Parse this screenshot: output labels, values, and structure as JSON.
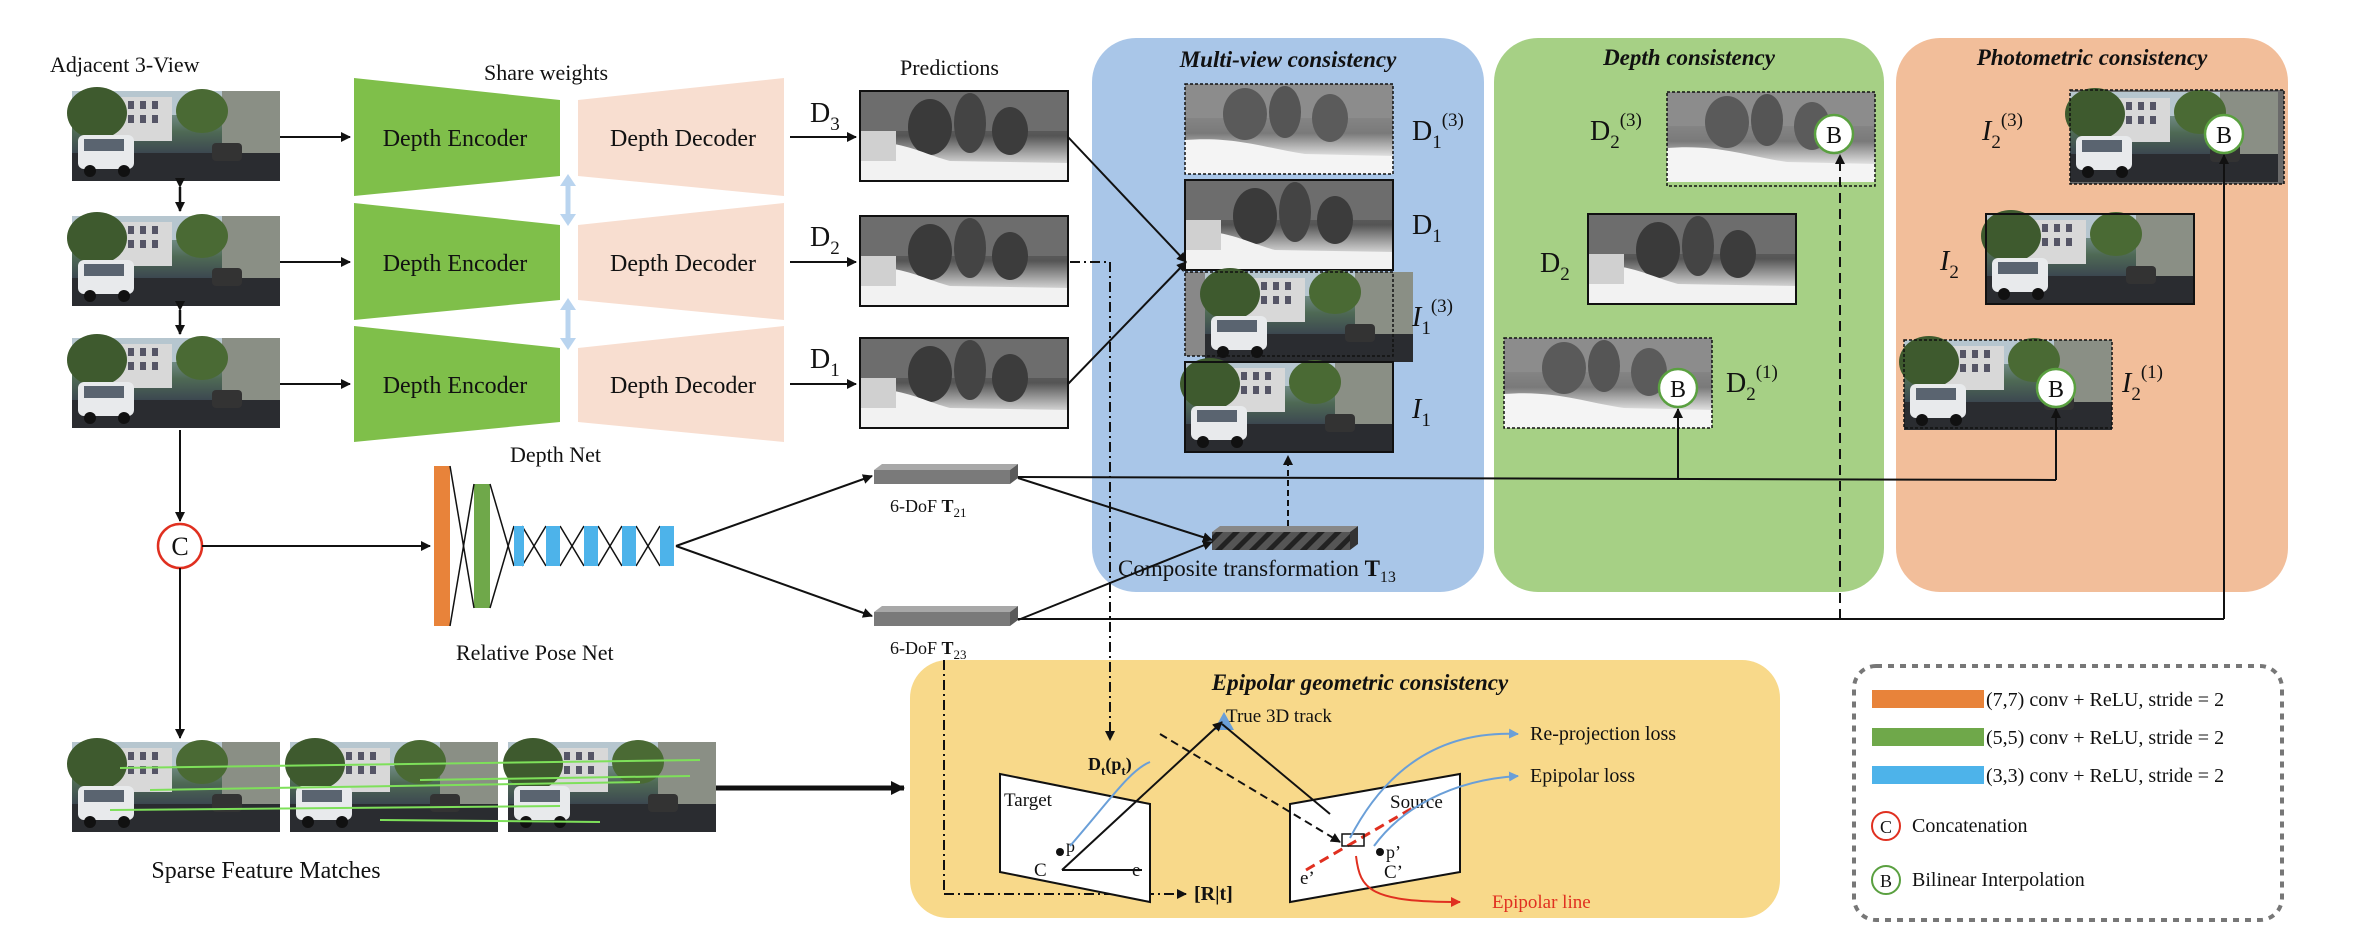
{
  "labels": {
    "adjacent": "Adjacent 3-View",
    "share_weights": "Share weights",
    "predictions": "Predictions",
    "depth_net": "Depth Net",
    "relative_pose_net": "Relative Pose Net",
    "sparse_matches": "Sparse Feature Matches",
    "composite_text": "Composite transformation ",
    "composite_sym": "T",
    "composite_sub": "13",
    "dof_prefix": "6-DoF ",
    "dof_sym": "T",
    "dof_21_sub": "21",
    "dof_23_sub": "23",
    "concat_symbol": "C",
    "bilinear_symbol": "B"
  },
  "encoder_label": "Depth Encoder",
  "decoder_label": "Depth Decoder",
  "predictions": {
    "d3": {
      "base": "D",
      "sub": "3"
    },
    "d2": {
      "base": "D",
      "sub": "2"
    },
    "d1": {
      "base": "D",
      "sub": "1"
    }
  },
  "panels": {
    "multiview": {
      "title": "Multi-view consistency",
      "color": "#a9c6e8",
      "d13": {
        "base": "D",
        "sub": "1",
        "sup": "(3)"
      },
      "d1": {
        "base": "D",
        "sub": "1"
      },
      "i13": {
        "base": "I",
        "sub": "1",
        "sup": "(3)"
      },
      "i1": {
        "base": "I",
        "sub": "1"
      }
    },
    "depth": {
      "title": "Depth consistency",
      "color": "#a6d085",
      "d23": {
        "base": "D",
        "sub": "2",
        "sup": "(3)"
      },
      "d2": {
        "base": "D",
        "sub": "2"
      },
      "d21": {
        "base": "D",
        "sub": "2",
        "sup": "(1)"
      }
    },
    "photo": {
      "title": "Photometric consistency",
      "color": "#f2be9a",
      "i23": {
        "base": "I",
        "sub": "2",
        "sup": "(3)"
      },
      "i2": {
        "base": "I",
        "sub": "2"
      },
      "i21": {
        "base": "I",
        "sub": "2",
        "sup": "(1)"
      }
    },
    "epipolar": {
      "title": "Epipolar geometric consistency",
      "color": "#f8d98a",
      "true_track": "True 3D track",
      "reprojection_loss": "Re-projection  loss",
      "epipolar_loss": "Epipolar loss",
      "target": "Target",
      "source": "Source",
      "depth_label": "D",
      "depth_sub": "t",
      "depth_arg": "(p",
      "depth_arg_sub": "t",
      "depth_arg_close": ")",
      "rt": "[R|t]",
      "c": "C",
      "c_prime": "C’",
      "e": "e",
      "e_prime": "e’",
      "p": "p",
      "p_prime": "p’",
      "epipolar_line": "Epipolar line"
    }
  },
  "legend": {
    "items": [
      {
        "color": "#e8833a",
        "label": "(7,7) conv + ReLU,  stride = 2"
      },
      {
        "color": "#6fa84a",
        "label": "(5,5) conv + ReLU,  stride = 2"
      },
      {
        "color": "#4db3ea",
        "label": "(3,3) conv + ReLU,  stride = 2"
      },
      {
        "symbol": "C",
        "label": "Concatenation"
      },
      {
        "symbol": "B",
        "label": "Bilinear  Interpolation"
      }
    ]
  },
  "colors": {
    "encoder": "#7fbf4a",
    "decoder": "#f8ded0",
    "concat_ring": "#e03020",
    "bilinear_ring": "#5aa040",
    "red_line": "#e03020",
    "blue_line": "#6a9fd8"
  }
}
